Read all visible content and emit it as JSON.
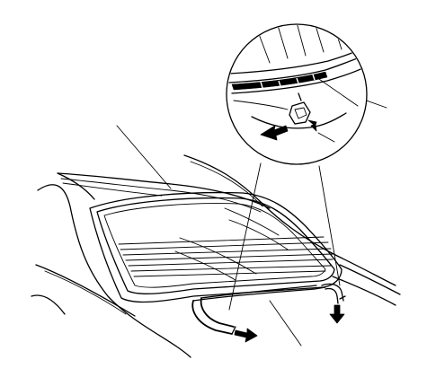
{
  "figure": {
    "background": "#ffffff",
    "line_color": "#000000",
    "icons": [
      "magnifier-callout",
      "removal-arrow",
      "retaining-clip",
      "molding-strip"
    ]
  }
}
